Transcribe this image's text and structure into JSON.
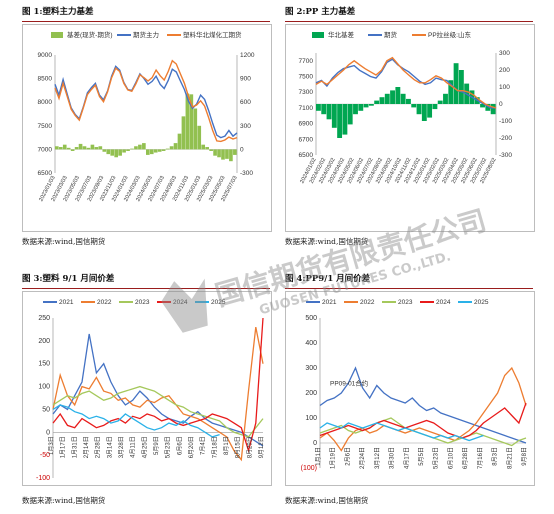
{
  "figures": [
    {
      "caption": "图 1:塑料主力基差",
      "source": "数据来源:wind,国信期货"
    },
    {
      "caption": "图 2:PP 主力基差",
      "source": "数据来源:wind,国信期货"
    },
    {
      "caption": "图 3:塑料 9/1 月间价差",
      "source": "数据来源:wind,国信期货"
    },
    {
      "caption": "图 4:PP9/1 月间价差",
      "source": "数据来源:wind,国信期货"
    }
  ],
  "watermark": {
    "text": "国信期货有限责任公司",
    "text_en": "GUOSEN FUTURES CO.,LTD."
  },
  "colors": {
    "caption_rule": "#9a1d1d",
    "basis_green": "#92c050",
    "basis_green_dark": "#00a651",
    "futures_blue": "#4472c4",
    "spot_orange": "#ed7d31",
    "s2021": "#4472c4",
    "s2022": "#ed7d31",
    "s2023": "#a5c85c",
    "s2024": "#e81b1b",
    "s2025": "#2ab1e8"
  },
  "chart_data": [
    {
      "type": "bar+line",
      "title": "",
      "legend": [
        "基差(现货-期货)",
        "期货主力",
        "塑料华北煤化工期货"
      ],
      "legend_position": "top",
      "x_labels": [
        "2023/01/03",
        "2023/03/03",
        "2023/05/03",
        "2023/07/03",
        "2023/09/03",
        "2023/11/03",
        "2024/01/03",
        "2024/03/03",
        "2024/05/03",
        "2024/07/03",
        "2024/09/03",
        "2024/11/03",
        "2025/01/03",
        "2025/03/03",
        "2025/05/03",
        "2025/07/03"
      ],
      "y_left": {
        "min": 6500,
        "max": 9000,
        "ticks": [
          6500,
          7000,
          7500,
          8000,
          8500,
          9000
        ]
      },
      "y_right": {
        "min": -300,
        "max": 1200,
        "ticks": [
          -300,
          0,
          300,
          600,
          900,
          1200
        ]
      },
      "series": [
        {
          "name": "期货主力",
          "axis": "left",
          "values": [
            8380,
            8150,
            8480,
            8180,
            7880,
            7740,
            7650,
            7900,
            8200,
            8310,
            8400,
            8150,
            8050,
            8240,
            8550,
            8760,
            8680,
            8420,
            8270,
            8250,
            8420,
            8600,
            8500,
            8380,
            8440,
            8550,
            8380,
            8290,
            8460,
            8700,
            8640,
            8450,
            8270,
            8020,
            7870,
            7960,
            8150,
            8060,
            7820,
            7550,
            7300,
            7250,
            7280,
            7400,
            7280,
            7350
          ]
        },
        {
          "name": "塑料华北煤化工期货",
          "axis": "left",
          "values": [
            8300,
            8080,
            8400,
            8130,
            7850,
            7720,
            7620,
            7880,
            8160,
            8270,
            8360,
            8120,
            8010,
            8220,
            8520,
            8720,
            8650,
            8400,
            8260,
            8230,
            8390,
            8580,
            8520,
            8450,
            8520,
            8680,
            8560,
            8470,
            8650,
            8880,
            8810,
            8600,
            8400,
            8120,
            7900,
            7940,
            8030,
            7920,
            7670,
            7400,
            7180,
            7170,
            7200,
            7260,
            7220,
            7250
          ]
        },
        {
          "name": "基差(现货-期货)",
          "axis": "right",
          "kind": "bar",
          "values": [
            40,
            30,
            60,
            20,
            -20,
            30,
            70,
            40,
            20,
            60,
            30,
            40,
            -30,
            -60,
            -80,
            -100,
            -80,
            -40,
            -20,
            10,
            40,
            60,
            80,
            -70,
            -60,
            -40,
            -30,
            -20,
            10,
            40,
            80,
            200,
            420,
            710,
            700,
            520,
            300,
            60,
            30,
            -20,
            -80,
            -100,
            -130,
            -120,
            -150,
            -70
          ]
        }
      ]
    },
    {
      "type": "bar+line",
      "title": "",
      "legend": [
        "华北基差",
        "期货",
        "PP拉丝级:山东"
      ],
      "legend_position": "top",
      "x_labels": [
        "2024/01/02",
        "2024/02/02",
        "2024/03/02",
        "2024/04/02",
        "2024/05/02",
        "2024/06/02",
        "2024/07/02",
        "2024/08/02",
        "2024/09/02",
        "2024/10/02",
        "2024/11/02",
        "2024/12/02",
        "2025/01/02",
        "2025/02/02",
        "2025/03/02",
        "2025/04/02",
        "2025/05/02",
        "2025/06/02",
        "2025/07/02",
        "2025/08/02"
      ],
      "y_left": {
        "min": 6500,
        "max": 7800,
        "ticks": [
          6500,
          6700,
          6900,
          7100,
          7300,
          7500,
          7700
        ]
      },
      "y_right": {
        "min": -300,
        "max": 300,
        "ticks": [
          -300,
          -200,
          -100,
          0,
          100,
          200,
          300
        ]
      },
      "series": [
        {
          "name": "期货",
          "axis": "left",
          "values": [
            7420,
            7450,
            7380,
            7480,
            7550,
            7600,
            7620,
            7640,
            7580,
            7540,
            7500,
            7480,
            7560,
            7680,
            7720,
            7650,
            7600,
            7560,
            7500,
            7440,
            7400,
            7420,
            7480,
            7460,
            7450,
            7380,
            7320,
            7300,
            7260,
            7220,
            7180,
            7140,
            7100,
            7100
          ]
        },
        {
          "name": "PP拉丝级:山东",
          "axis": "left",
          "values": [
            7400,
            7440,
            7400,
            7460,
            7520,
            7580,
            7650,
            7700,
            7650,
            7600,
            7560,
            7520,
            7580,
            7700,
            7740,
            7660,
            7580,
            7520,
            7460,
            7420,
            7420,
            7460,
            7510,
            7480,
            7420,
            7370,
            7320,
            7320,
            7300,
            7260,
            7200,
            7150,
            7120,
            7100
          ]
        },
        {
          "name": "华北基差",
          "axis": "right",
          "kind": "bar",
          "values": [
            -40,
            -60,
            -90,
            -140,
            -200,
            -180,
            -120,
            -60,
            -40,
            -20,
            -10,
            20,
            40,
            60,
            80,
            100,
            60,
            30,
            -20,
            -60,
            -100,
            -80,
            -30,
            20,
            60,
            140,
            240,
            200,
            120,
            80,
            40,
            -20,
            -40,
            -60
          ]
        }
      ]
    },
    {
      "type": "line",
      "title": "",
      "legend": [
        "2021",
        "2022",
        "2023",
        "2024",
        "2025"
      ],
      "legend_position": "top",
      "x_labels": [
        "1月3日",
        "1月17日",
        "1月31日",
        "2月14日",
        "2月28日",
        "3月14日",
        "3月28日",
        "4月11日",
        "4月25日",
        "5月9日",
        "5月23日",
        "6月6日",
        "6月20日",
        "7月4日",
        "7月18日",
        "8月1日",
        "8月15日",
        "8月29日",
        "9月12日"
      ],
      "y": {
        "min": -100,
        "max": 250,
        "ticks": [
          -100,
          -50,
          0,
          50,
          100,
          150,
          200,
          250
        ]
      },
      "series": [
        {
          "name": "2021",
          "values": [
            40,
            60,
            50,
            80,
            110,
            215,
            130,
            150,
            110,
            80,
            60,
            70,
            90,
            75,
            55,
            40,
            30,
            25,
            20,
            35,
            45,
            30,
            20,
            15,
            10,
            5,
            0,
            -10,
            -20,
            -30
          ]
        },
        {
          "name": "2022",
          "values": [
            50,
            125,
            80,
            60,
            100,
            95,
            120,
            90,
            85,
            70,
            75,
            60,
            55,
            70,
            65,
            75,
            80,
            60,
            40,
            35,
            30,
            20,
            10,
            0,
            -10,
            -40,
            -60,
            90,
            230,
            150
          ]
        },
        {
          "name": "2023",
          "values": [
            60,
            70,
            80,
            75,
            85,
            90,
            80,
            70,
            75,
            85,
            90,
            95,
            100,
            95,
            90,
            80,
            70,
            60,
            55,
            45,
            40,
            35,
            30,
            25,
            10,
            0,
            -5,
            -10,
            10,
            30
          ]
        },
        {
          "name": "2024",
          "values": [
            20,
            40,
            15,
            10,
            30,
            20,
            10,
            15,
            25,
            30,
            20,
            35,
            30,
            40,
            35,
            25,
            30,
            20,
            15,
            20,
            25,
            30,
            40,
            35,
            30,
            20,
            10,
            -40,
            20,
            250
          ]
        },
        {
          "name": "2025",
          "values": [
            50,
            60,
            55,
            45,
            40,
            30,
            35,
            30,
            20,
            25,
            40,
            30,
            20,
            10,
            5,
            10,
            20,
            15,
            25,
            15,
            10,
            0,
            -10,
            -5
          ]
        }
      ]
    },
    {
      "type": "line",
      "title": "",
      "legend": [
        "2021",
        "2022",
        "2023",
        "2024",
        "2025"
      ],
      "legend_position": "top",
      "annotation": "PP09-01合约",
      "x_labels": [
        "1月1日",
        "1月19日",
        "2月6日",
        "2月24日",
        "3月12日",
        "3月30日",
        "4月17日",
        "5月5日",
        "5月23日",
        "6月10日",
        "6月28日",
        "7月16日",
        "8月3日",
        "8月21日",
        "9月8日"
      ],
      "y": {
        "min": -100,
        "max": 500,
        "ticks": [
          -100,
          0,
          100,
          200,
          300,
          400,
          500
        ]
      },
      "y_tick_labels": [
        "(100)",
        "0",
        "100",
        "200",
        "300",
        "400",
        "500"
      ],
      "series": [
        {
          "name": "2021",
          "values": [
            150,
            170,
            180,
            200,
            240,
            300,
            220,
            180,
            230,
            200,
            180,
            170,
            160,
            180,
            150,
            130,
            140,
            120,
            110,
            100,
            90,
            80,
            70,
            60,
            50,
            40,
            30,
            20,
            10,
            0
          ]
        },
        {
          "name": "2022",
          "values": [
            20,
            40,
            10,
            -30,
            20,
            50,
            60,
            40,
            50,
            70,
            60,
            50,
            40,
            50,
            60,
            50,
            40,
            30,
            20,
            10,
            30,
            50,
            80,
            120,
            160,
            200,
            270,
            300,
            240,
            150
          ]
        },
        {
          "name": "2023",
          "values": [
            40,
            50,
            60,
            70,
            50,
            40,
            50,
            60,
            80,
            90,
            100,
            80,
            60,
            50,
            40,
            30,
            20,
            10,
            0,
            10,
            20,
            30,
            40,
            30,
            20,
            10,
            0,
            -10,
            10,
            20
          ]
        },
        {
          "name": "2024",
          "values": [
            30,
            40,
            50,
            60,
            70,
            60,
            50,
            60,
            80,
            90,
            80,
            70,
            60,
            70,
            80,
            90,
            80,
            60,
            40,
            30,
            20,
            30,
            50,
            80,
            100,
            120,
            140,
            110,
            80,
            160
          ]
        },
        {
          "name": "2025",
          "values": [
            60,
            80,
            70,
            60,
            80,
            70,
            60,
            70,
            80,
            70,
            60,
            50,
            60,
            50,
            40,
            30,
            20,
            30,
            20,
            30,
            20,
            10,
            20,
            30
          ]
        }
      ]
    }
  ]
}
